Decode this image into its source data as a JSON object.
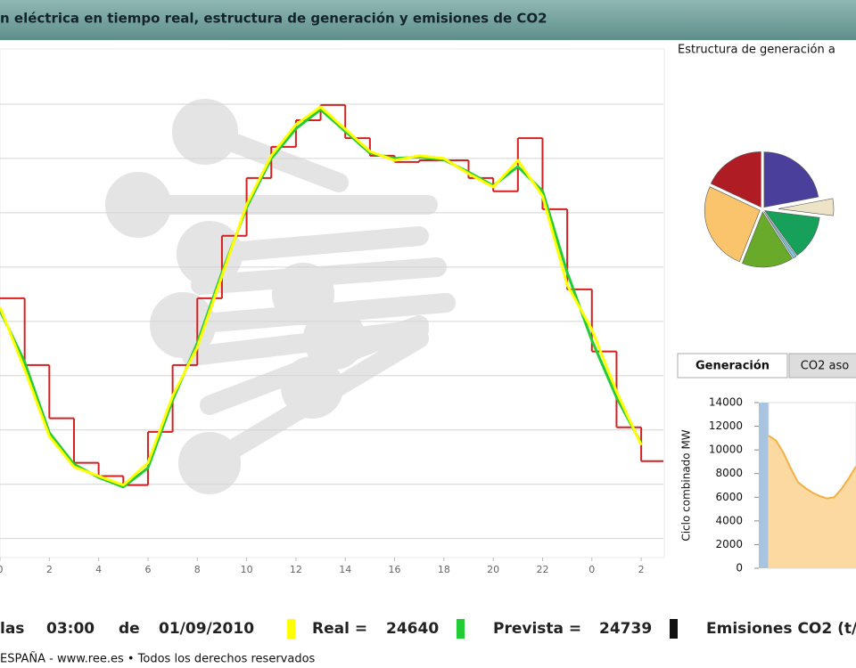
{
  "header": {
    "title": "n eléctrica en tiempo real, estructura de generación y emisiones de CO2"
  },
  "demand_chart": {
    "type": "line",
    "x": [
      0,
      1,
      2,
      3,
      4,
      5,
      6,
      7,
      8,
      9,
      10,
      11,
      12,
      13,
      14,
      15,
      16,
      17,
      18,
      19,
      20,
      21,
      22,
      23,
      24,
      25,
      26
    ],
    "xlim": [
      0,
      26.9
    ],
    "xticks": [
      0,
      2,
      4,
      6,
      8,
      10,
      12,
      14,
      16,
      18,
      20,
      22,
      {
        "value": 24,
        "label": "0"
      },
      {
        "value": 26,
        "label": "2"
      }
    ],
    "ylim": [
      21300,
      40000
    ],
    "ygrid": [
      22000,
      24000,
      26000,
      28000,
      30000,
      32000,
      34000,
      36000,
      38000
    ],
    "series": [
      {
        "color": "#d42020",
        "step": true,
        "values": [
          30850,
          28390,
          26430,
          24790,
          24300,
          23970,
          25930,
          28390,
          30850,
          33150,
          35280,
          36430,
          37410,
          37970,
          36750,
          36100,
          35870,
          35930,
          35930,
          35280,
          34790,
          36750,
          34130,
          31180,
          28890,
          26100,
          24850
        ]
      },
      {
        "name": "Prevista =",
        "color": "#22cc33",
        "values": [
          30400,
          28500,
          25900,
          24739,
          24250,
          23900,
          24600,
          27100,
          29200,
          31800,
          34200,
          36000,
          37100,
          37800,
          37000,
          36200,
          36000,
          36050,
          35950,
          35500,
          35000,
          35700,
          34800,
          31800,
          29300,
          27200,
          25500
        ]
      },
      {
        "name": "Real =",
        "color": "#ffff00",
        "values": [
          30520,
          28230,
          25770,
          24640,
          24300,
          23970,
          24790,
          27250,
          29050,
          31670,
          34300,
          36100,
          37250,
          37900,
          37080,
          36260,
          35930,
          36100,
          36000,
          35440,
          34950,
          35930,
          34620,
          31340,
          29700,
          27410,
          25440
        ]
      }
    ]
  },
  "footer": {
    "lead": "las",
    "time": "03:00",
    "connector": "de",
    "date": "01/09/2010",
    "real_value": 24640,
    "forecast_value": 24739,
    "emissions_label": "Emisiones CO2 (t/"
  },
  "copyright": "ESPAÑA - www.ree.es • Todos los derechos reservados",
  "pie_chart": {
    "type": "pie",
    "title": "Estructura de generación a",
    "values": [
      22,
      5,
      13,
      1,
      15,
      26,
      18
    ],
    "colors": [
      "#4a3f9b",
      "#ede4c8",
      "#16a05a",
      "#7ec8e0",
      "#6aaa2a",
      "#f9c46b",
      "#b01c24"
    ],
    "exploded": [
      false,
      true,
      false,
      false,
      false,
      false,
      false
    ]
  },
  "tabs": {
    "labels": [
      "Generación",
      "CO2 aso"
    ],
    "active": 0
  },
  "cc_chart": {
    "type": "area",
    "y_label": "Ciclo combinado MW",
    "ylim": [
      0,
      14000
    ],
    "yticks": [
      0,
      2000,
      4000,
      6000,
      8000,
      10000,
      12000,
      14000
    ],
    "color": "#f2b045",
    "fill": "#fcd9a0",
    "values": [
      11200,
      10800,
      9800,
      8500,
      7300,
      6800,
      6400,
      6100,
      5900,
      6000,
      6700,
      7600,
      8600
    ]
  }
}
